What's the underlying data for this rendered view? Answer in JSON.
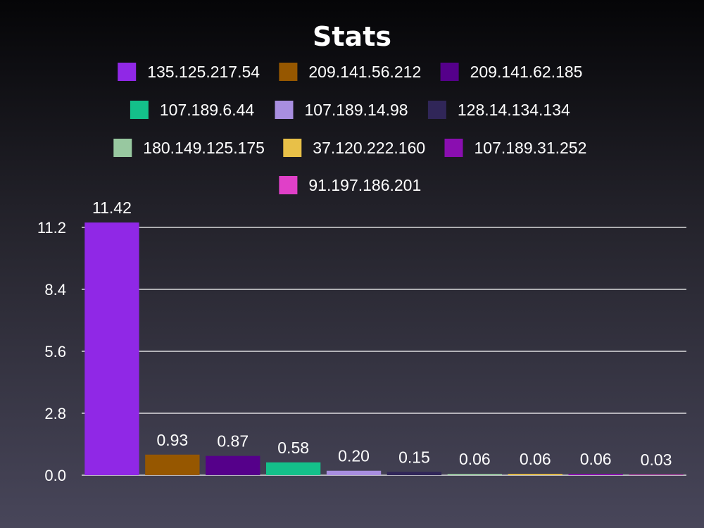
{
  "chart_data": {
    "type": "bar",
    "title": "Stats",
    "xlabel": "",
    "ylabel": "",
    "ylim": [
      0,
      11.2
    ],
    "yticks": [
      "0.0",
      "2.8",
      "5.6",
      "8.4",
      "11.2"
    ],
    "grid": true,
    "legend_position": "top",
    "series": [
      {
        "name": "135.125.217.54",
        "value": 11.42,
        "label": "11.42",
        "color": "#9028e6"
      },
      {
        "name": "209.141.56.212",
        "value": 0.93,
        "label": "0.93",
        "color": "#965700"
      },
      {
        "name": "209.141.62.185",
        "value": 0.87,
        "label": "0.87",
        "color": "#55008a"
      },
      {
        "name": "107.189.6.44",
        "value": 0.58,
        "label": "0.58",
        "color": "#14c08a"
      },
      {
        "name": "107.189.14.98",
        "value": 0.2,
        "label": "0.20",
        "color": "#a88ee0"
      },
      {
        "name": "128.14.134.134",
        "value": 0.15,
        "label": "0.15",
        "color": "#302658"
      },
      {
        "name": "180.149.125.175",
        "value": 0.06,
        "label": "0.06",
        "color": "#98c8a0"
      },
      {
        "name": "37.120.222.160",
        "value": 0.06,
        "label": "0.06",
        "color": "#e8c048"
      },
      {
        "name": "107.189.31.252",
        "value": 0.06,
        "label": "0.06",
        "color": "#8a0eb0"
      },
      {
        "name": "91.197.186.201",
        "value": 0.03,
        "label": "0.03",
        "color": "#e040c8"
      }
    ]
  }
}
